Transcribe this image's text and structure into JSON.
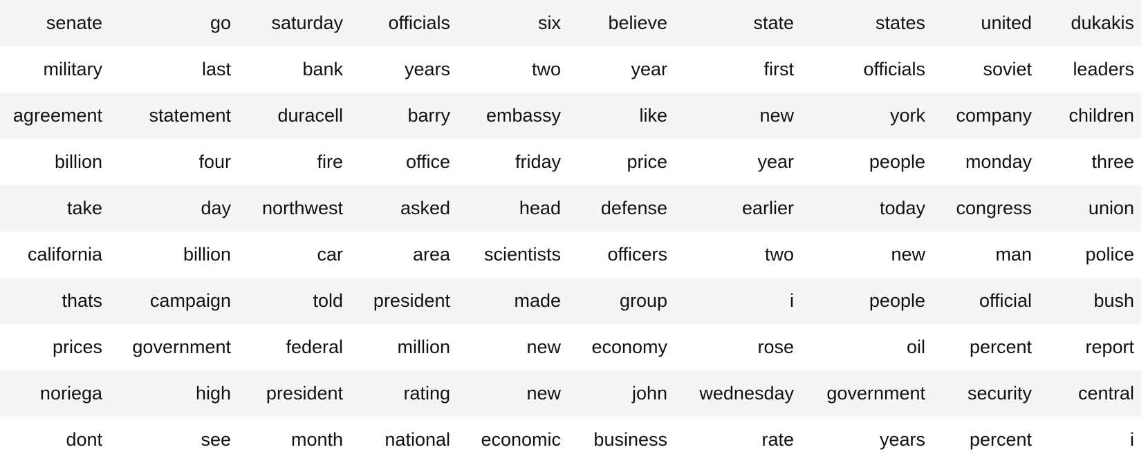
{
  "table": {
    "rows": [
      [
        "senate",
        "go",
        "saturday",
        "officials",
        "six",
        "believe",
        "state",
        "states",
        "united",
        "dukakis"
      ],
      [
        "military",
        "last",
        "bank",
        "years",
        "two",
        "year",
        "first",
        "officials",
        "soviet",
        "leaders"
      ],
      [
        "agreement",
        "statement",
        "duracell",
        "barry",
        "embassy",
        "like",
        "new",
        "york",
        "company",
        "children"
      ],
      [
        "billion",
        "four",
        "fire",
        "office",
        "friday",
        "price",
        "year",
        "people",
        "monday",
        "three"
      ],
      [
        "take",
        "day",
        "northwest",
        "asked",
        "head",
        "defense",
        "earlier",
        "today",
        "congress",
        "union"
      ],
      [
        "california",
        "billion",
        "car",
        "area",
        "scientists",
        "officers",
        "two",
        "new",
        "man",
        "police"
      ],
      [
        "thats",
        "campaign",
        "told",
        "president",
        "made",
        "group",
        "i",
        "people",
        "official",
        "bush"
      ],
      [
        "prices",
        "government",
        "federal",
        "million",
        "new",
        "economy",
        "rose",
        "oil",
        "percent",
        "report"
      ],
      [
        "noriega",
        "high",
        "president",
        "rating",
        "new",
        "john",
        "wednesday",
        "government",
        "security",
        "central"
      ],
      [
        "dont",
        "see",
        "month",
        "national",
        "economic",
        "business",
        "rate",
        "years",
        "percent",
        "i"
      ]
    ]
  },
  "colors": {
    "stripe": "#f5f5f5",
    "background": "#ffffff",
    "text": "#111111"
  }
}
